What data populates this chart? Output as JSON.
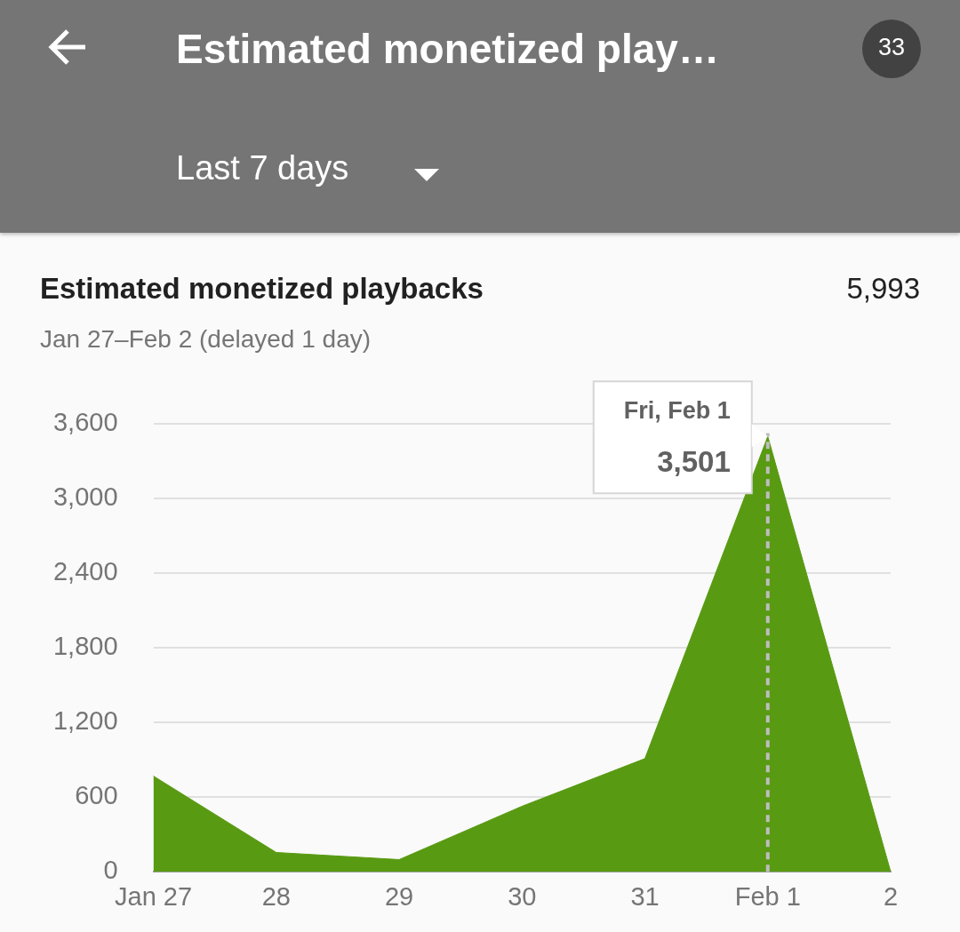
{
  "chart_data": {
    "type": "area",
    "title": "Estimated monetized playbacks",
    "subtitle": "Jan 27–Feb 2 (delayed 1 day)",
    "categories": [
      "Jan 27",
      "28",
      "29",
      "30",
      "31",
      "Feb 1",
      "2"
    ],
    "series": [
      {
        "color": "#589a12",
        "values": [
          770,
          155,
          98,
          527,
          910,
          3501,
          0
        ]
      }
    ],
    "ylim": [
      0,
      3600
    ],
    "yticks": [
      {
        "value": 0,
        "label": "0"
      },
      {
        "value": 600,
        "label": "600"
      },
      {
        "value": 1200,
        "label": "1,200"
      },
      {
        "value": 1800,
        "label": "1,800"
      },
      {
        "value": 2400,
        "label": "2,400"
      },
      {
        "value": 3000,
        "label": "3,000"
      },
      {
        "value": 3600,
        "label": "3,600"
      }
    ],
    "grid": "y",
    "legend": false,
    "marker": "none",
    "ref_lines": [
      {
        "axis": "x",
        "value": "Feb 1",
        "color": "#bdbdbd",
        "line_style": "dashed"
      }
    ],
    "annotations": [
      "Estimated monetized play…",
      "33",
      "Last 7 days",
      "5,993",
      {
        "text": "Fri, Feb 1",
        "x": "Feb 1",
        "y": 3501
      },
      {
        "text": "3,501",
        "x": "Feb 1",
        "y": 3501
      }
    ]
  }
}
